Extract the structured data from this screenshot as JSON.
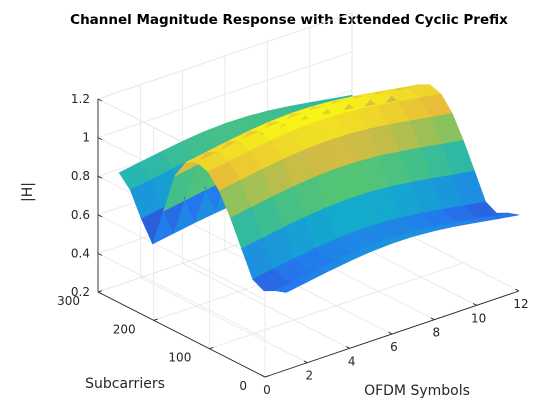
{
  "chart_data": {
    "type": "surface",
    "title": "Channel Magnitude Response with Extended Cyclic Prefix",
    "xlabel": "OFDM Symbols",
    "ylabel": "Subcarriers",
    "zlabel": "|H|",
    "xlim": [
      0,
      12
    ],
    "ylim": [
      0,
      300
    ],
    "zlim": [
      0.2,
      1.2
    ],
    "x_ticks": [
      "0",
      "2",
      "4",
      "6",
      "8",
      "10",
      "12"
    ],
    "y_ticks": [
      "0",
      "100",
      "200",
      "300"
    ],
    "z_ticks": [
      "0.2",
      "0.4",
      "0.6",
      "0.8",
      "1",
      "1.2"
    ],
    "grid": true,
    "colormap": "parula",
    "symbols": [
      1,
      2,
      3,
      4,
      5,
      6,
      7,
      8,
      9,
      10,
      11,
      12
    ],
    "subcarriers": [
      0,
      20,
      40,
      60,
      80,
      100,
      120,
      140,
      160,
      180,
      200,
      220,
      240,
      260,
      280,
      300
    ],
    "magnitude_by_subcarrier": [
      0.62,
      0.6,
      0.57,
      0.6,
      0.73,
      0.86,
      0.97,
      1.04,
      1.06,
      1.03,
      0.93,
      0.72,
      0.52,
      0.62,
      0.74,
      0.8
    ],
    "symbol_variation_amplitude": 0.05
  }
}
